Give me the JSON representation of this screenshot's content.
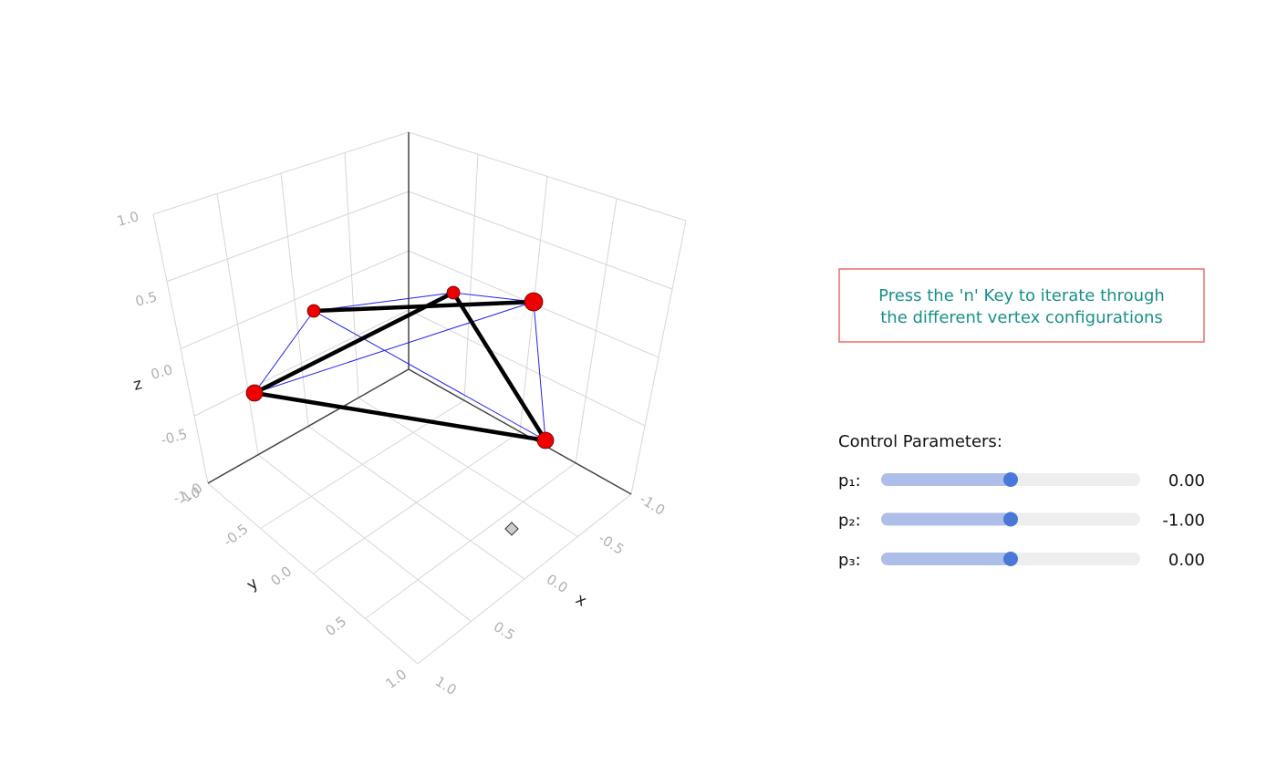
{
  "plot": {
    "axes": {
      "x": {
        "label": "x",
        "ticks": [
          "-1.0",
          "-0.5",
          "0.0",
          "0.5",
          "1.0"
        ]
      },
      "y": {
        "label": "y",
        "ticks": [
          "-1.0",
          "-0.5",
          "0.0",
          "0.5",
          "1.0"
        ]
      },
      "z": {
        "label": "z",
        "ticks": [
          "1.0",
          "0.5",
          "0.0",
          "-0.5",
          "-1.0"
        ]
      }
    }
  },
  "info_box": {
    "lines": [
      "Press the 'n' Key to iterate through",
      "the different vertex configurations"
    ]
  },
  "controls": {
    "title": "Control Parameters:",
    "sliders": [
      {
        "label": "p₁:",
        "value": "0.00"
      },
      {
        "label": "p₂:",
        "value": "-1.00"
      },
      {
        "label": "p₃:",
        "value": "0.00"
      }
    ]
  }
}
